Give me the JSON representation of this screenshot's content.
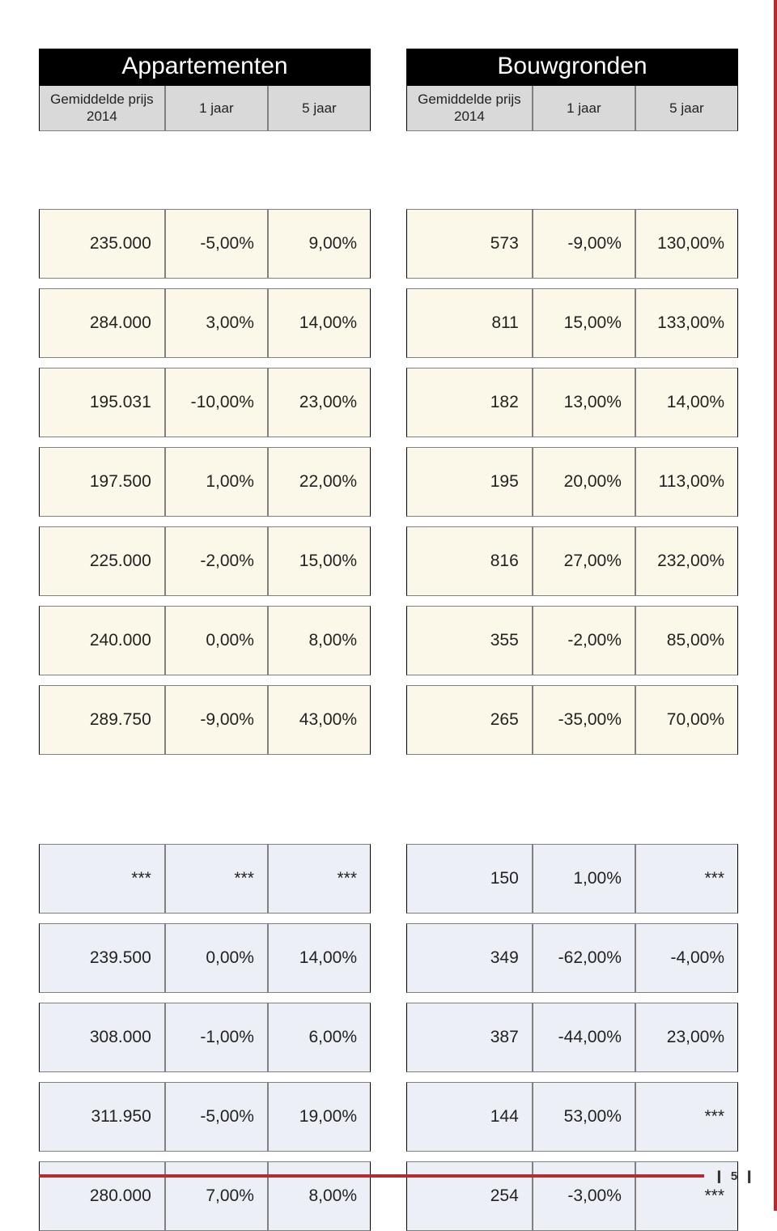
{
  "colors": {
    "header_bg": "#000000",
    "header_text": "#ffffff",
    "subheader_bg": "#d9d9d9",
    "cream_bg": "#fcf8e9",
    "blue_bg": "#eceff5",
    "border_outer": "#000000",
    "border_inner": "#808080",
    "accent": "#b52b2e",
    "text": "#222222"
  },
  "typography": {
    "title_fontsize": 30,
    "header_fontsize": 17,
    "cell_fontsize": 21,
    "footer_fontsize": 15
  },
  "left": {
    "title": "Appartementen",
    "headers": [
      "Gemiddelde prijs\n2014",
      "1 jaar",
      "5 jaar"
    ],
    "group1": [
      [
        "235.000",
        "-5,00%",
        "9,00%"
      ],
      [
        "284.000",
        "3,00%",
        "14,00%"
      ],
      [
        "195.031",
        "-10,00%",
        "23,00%"
      ],
      [
        "197.500",
        "1,00%",
        "22,00%"
      ],
      [
        "225.000",
        "-2,00%",
        "15,00%"
      ],
      [
        "240.000",
        "0,00%",
        "8,00%"
      ],
      [
        "289.750",
        "-9,00%",
        "43,00%"
      ]
    ],
    "group2": [
      [
        "***",
        "***",
        "***"
      ],
      [
        "239.500",
        "0,00%",
        "14,00%"
      ],
      [
        "308.000",
        "-1,00%",
        "6,00%"
      ],
      [
        "311.950",
        "-5,00%",
        "19,00%"
      ],
      [
        "280.000",
        "7,00%",
        "8,00%"
      ]
    ]
  },
  "right": {
    "title": "Bouwgronden",
    "headers": [
      "Gemiddelde prijs\n2014",
      "1 jaar",
      "5 jaar"
    ],
    "group1": [
      [
        "573",
        "-9,00%",
        "130,00%"
      ],
      [
        "811",
        "15,00%",
        "133,00%"
      ],
      [
        "182",
        "13,00%",
        "14,00%"
      ],
      [
        "195",
        "20,00%",
        "113,00%"
      ],
      [
        "816",
        "27,00%",
        "232,00%"
      ],
      [
        "355",
        "-2,00%",
        "85,00%"
      ],
      [
        "265",
        "-35,00%",
        "70,00%"
      ]
    ],
    "group2": [
      [
        "150",
        "1,00%",
        "***"
      ],
      [
        "349",
        "-62,00%",
        "-4,00%"
      ],
      [
        "387",
        "-44,00%",
        "23,00%"
      ],
      [
        "144",
        "53,00%",
        "***"
      ],
      [
        "254",
        "-3,00%",
        "***"
      ]
    ]
  },
  "footer": {
    "page": "5"
  }
}
